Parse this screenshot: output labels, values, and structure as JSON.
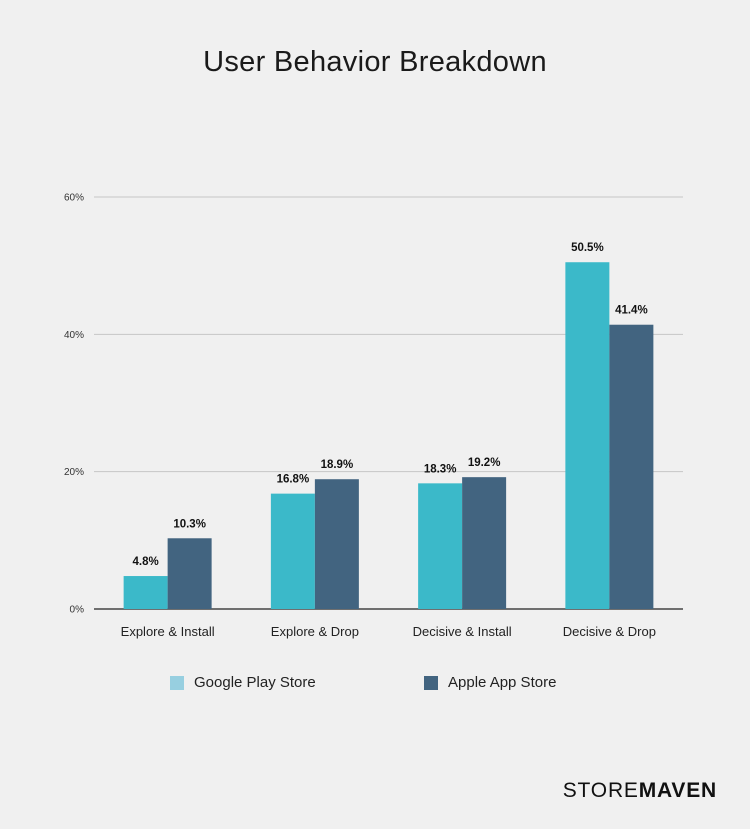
{
  "title": "User Behavior Breakdown",
  "brand": {
    "part1": "STORE",
    "part2": "MAVEN"
  },
  "colors": {
    "google": "#3bb9c9",
    "apple": "#426480",
    "google_swatch": "#97cfe0",
    "grid": "#c6c6c6",
    "axis": "#222222"
  },
  "chart_data": {
    "type": "bar",
    "title": "User Behavior Breakdown",
    "categories": [
      "Explore & Install",
      "Explore & Drop",
      "Decisive & Install",
      "Decisive & Drop"
    ],
    "series": [
      {
        "name": "Google Play Store",
        "values": [
          4.8,
          16.8,
          18.3,
          50.5
        ],
        "labels": [
          "4.8%",
          "16.8%",
          "18.3%",
          "50.5%"
        ]
      },
      {
        "name": "Apple App Store",
        "values": [
          10.3,
          18.9,
          19.2,
          41.4
        ],
        "labels": [
          "10.3%",
          "18.9%",
          "19.2%",
          "41.4%"
        ]
      }
    ],
    "ylim": [
      0,
      60
    ],
    "yticks": [
      0,
      20,
      40,
      60
    ],
    "ytick_labels": [
      "0%",
      "20%",
      "40%",
      "60%"
    ],
    "grid": true,
    "legend": "bottom"
  }
}
